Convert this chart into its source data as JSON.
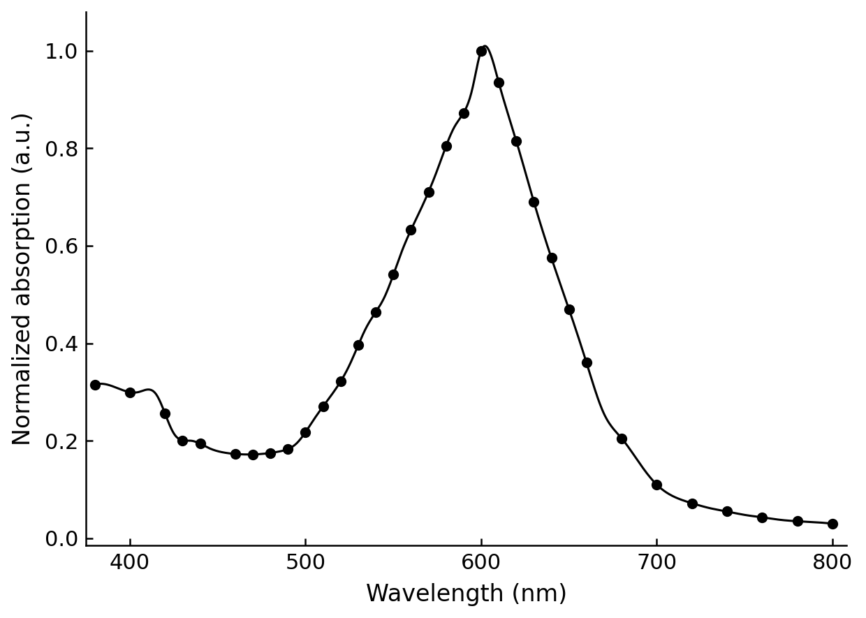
{
  "x_data": [
    380,
    395,
    405,
    415,
    425,
    435,
    445,
    455,
    465,
    475,
    485,
    495,
    505,
    515,
    525,
    535,
    545,
    555,
    565,
    575,
    585,
    595,
    600,
    610,
    620,
    630,
    640,
    650,
    660,
    670,
    680,
    690,
    700,
    710,
    720,
    730,
    740,
    750,
    760,
    770,
    780,
    790,
    800
  ],
  "y_data": [
    0.315,
    0.305,
    0.3,
    0.295,
    0.215,
    0.2,
    0.185,
    0.175,
    0.172,
    0.173,
    0.178,
    0.195,
    0.245,
    0.295,
    0.355,
    0.435,
    0.495,
    0.59,
    0.67,
    0.755,
    0.845,
    0.922,
    1.0,
    0.935,
    0.815,
    0.69,
    0.575,
    0.47,
    0.36,
    0.255,
    0.205,
    0.155,
    0.11,
    0.085,
    0.072,
    0.062,
    0.055,
    0.048,
    0.043,
    0.038,
    0.035,
    0.033,
    0.03
  ],
  "marker_x": [
    380,
    400,
    420,
    430,
    440,
    460,
    470,
    480,
    490,
    500,
    510,
    520,
    530,
    540,
    550,
    560,
    570,
    580,
    590,
    600,
    610,
    620,
    630,
    640,
    650,
    660,
    680,
    700,
    720,
    740,
    760,
    780,
    800
  ],
  "xlabel": "Wavelength (nm)",
  "ylabel": "Normalized absorption (a.u.)",
  "xlim": [
    375,
    808
  ],
  "ylim": [
    -0.015,
    1.08
  ],
  "xticks": [
    400,
    500,
    600,
    700,
    800
  ],
  "yticks": [
    0.0,
    0.2,
    0.4,
    0.6,
    0.8,
    1.0
  ],
  "line_color": "#000000",
  "marker_color": "#000000",
  "background_color": "#ffffff",
  "tick_fontsize": 22,
  "label_fontsize": 24,
  "line_width": 2.2,
  "marker_size": 10
}
